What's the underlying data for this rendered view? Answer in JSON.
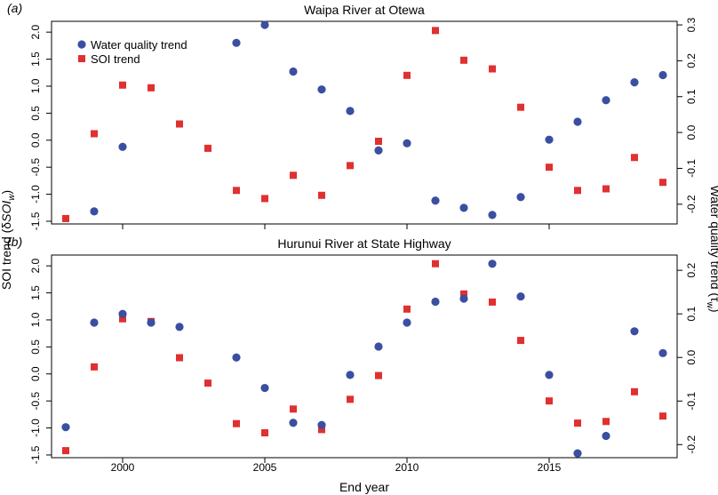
{
  "chart_data": {
    "type": "scatter",
    "xlabel": "End year",
    "ylabel_left": "SOI trend (δSOI_w)",
    "ylabel_left_parts": {
      "prefix": "SOI trend (",
      "delta": "δ",
      "italic": "SOI",
      "sub": "w",
      "suffix": ")"
    },
    "ylabel_right": "Water quality trend (τ_w)",
    "ylabel_right_parts": {
      "prefix": "Water quality trend (",
      "tau": "τ",
      "sub": "w",
      "suffix": ")"
    },
    "x_ticks": [
      2000,
      2005,
      2010,
      2015
    ],
    "xlim": [
      1997.5,
      2019.5
    ],
    "legend": {
      "placement": "top-left",
      "entries": [
        {
          "name": "Water quality trend",
          "color": "#3a4fa0",
          "marker": "circle"
        },
        {
          "name": "SOI trend",
          "color": "#e03030",
          "marker": "square"
        }
      ]
    },
    "panels": [
      {
        "label": "(a)",
        "title": "Waipa River at Otewa",
        "left_ylim": [
          -1.55,
          2.2
        ],
        "left_ticks": [
          "2.0",
          "1.5",
          "1.0",
          "0.5",
          "0.0",
          "-0.5",
          "-1.0",
          "-1.5"
        ],
        "left_tick_values": [
          2.0,
          1.5,
          1.0,
          0.5,
          0.0,
          -0.5,
          -1.0,
          -1.5
        ],
        "right_ylim": [
          -0.255,
          0.31
        ],
        "right_ticks": [
          "0.3",
          "0.2",
          "0.1",
          "0.0",
          "-0.1",
          "-0.2"
        ],
        "right_tick_values": [
          0.3,
          0.2,
          0.1,
          0.0,
          -0.1,
          -0.2
        ],
        "soi": {
          "x": [
            1998,
            1999,
            2000,
            2001,
            2002,
            2003,
            2004,
            2005,
            2006,
            2007,
            2008,
            2009,
            2010,
            2011,
            2012,
            2013,
            2014,
            2015,
            2016,
            2017,
            2018,
            2019
          ],
          "y": [
            -1.45,
            0.12,
            1.02,
            0.97,
            0.3,
            -0.15,
            -0.93,
            -1.08,
            -0.65,
            -1.02,
            -0.47,
            -0.02,
            1.2,
            2.03,
            1.48,
            1.32,
            0.61,
            -0.5,
            -0.93,
            -0.9,
            -0.32,
            -0.78
          ]
        },
        "water_quality": {
          "x": [
            1999,
            2000,
            2004,
            2005,
            2006,
            2007,
            2008,
            2009,
            2010,
            2011,
            2012,
            2013,
            2014,
            2015,
            2016,
            2017,
            2018,
            2019
          ],
          "y": [
            -0.22,
            -0.04,
            0.25,
            0.3,
            0.17,
            0.12,
            0.06,
            -0.05,
            -0.03,
            -0.19,
            -0.21,
            -0.23,
            -0.18,
            -0.02,
            0.03,
            0.09,
            0.14,
            0.16
          ]
        }
      },
      {
        "label": "(b)",
        "title": "Hurunui River at State Highway",
        "left_ylim": [
          -1.55,
          2.2
        ],
        "left_ticks": [
          "2.0",
          "1.5",
          "1.0",
          "0.5",
          "0.0",
          "-0.5",
          "-1.0",
          "-1.5"
        ],
        "left_tick_values": [
          2.0,
          1.5,
          1.0,
          0.5,
          0.0,
          -0.5,
          -1.0,
          -1.5
        ],
        "right_ylim": [
          -0.23,
          0.235
        ],
        "right_ticks": [
          "0.2",
          "0.1",
          "0.0",
          "-0.1",
          "-0.2"
        ],
        "right_tick_values": [
          0.2,
          0.1,
          0.0,
          -0.1,
          -0.2
        ],
        "soi": {
          "x": [
            1998,
            1999,
            2000,
            2001,
            2002,
            2003,
            2004,
            2005,
            2006,
            2007,
            2008,
            2009,
            2010,
            2011,
            2012,
            2013,
            2014,
            2015,
            2016,
            2017,
            2018,
            2019
          ],
          "y": [
            -1.42,
            0.13,
            1.02,
            0.97,
            0.3,
            -0.17,
            -0.92,
            -1.09,
            -0.65,
            -1.03,
            -0.47,
            -0.03,
            1.2,
            2.04,
            1.48,
            1.33,
            0.62,
            -0.5,
            -0.91,
            -0.88,
            -0.33,
            -0.78
          ]
        },
        "water_quality": {
          "x": [
            1998,
            1999,
            2000,
            2001,
            2002,
            2004,
            2005,
            2006,
            2007,
            2008,
            2009,
            2010,
            2011,
            2012,
            2013,
            2014,
            2015,
            2016,
            2017,
            2018,
            2019
          ],
          "y": [
            -0.16,
            0.08,
            0.1,
            0.08,
            0.07,
            0.0,
            -0.07,
            -0.15,
            -0.155,
            -0.04,
            0.025,
            0.08,
            0.128,
            0.135,
            0.215,
            0.14,
            -0.04,
            -0.22,
            -0.18,
            0.06,
            0.01
          ]
        }
      }
    ]
  }
}
